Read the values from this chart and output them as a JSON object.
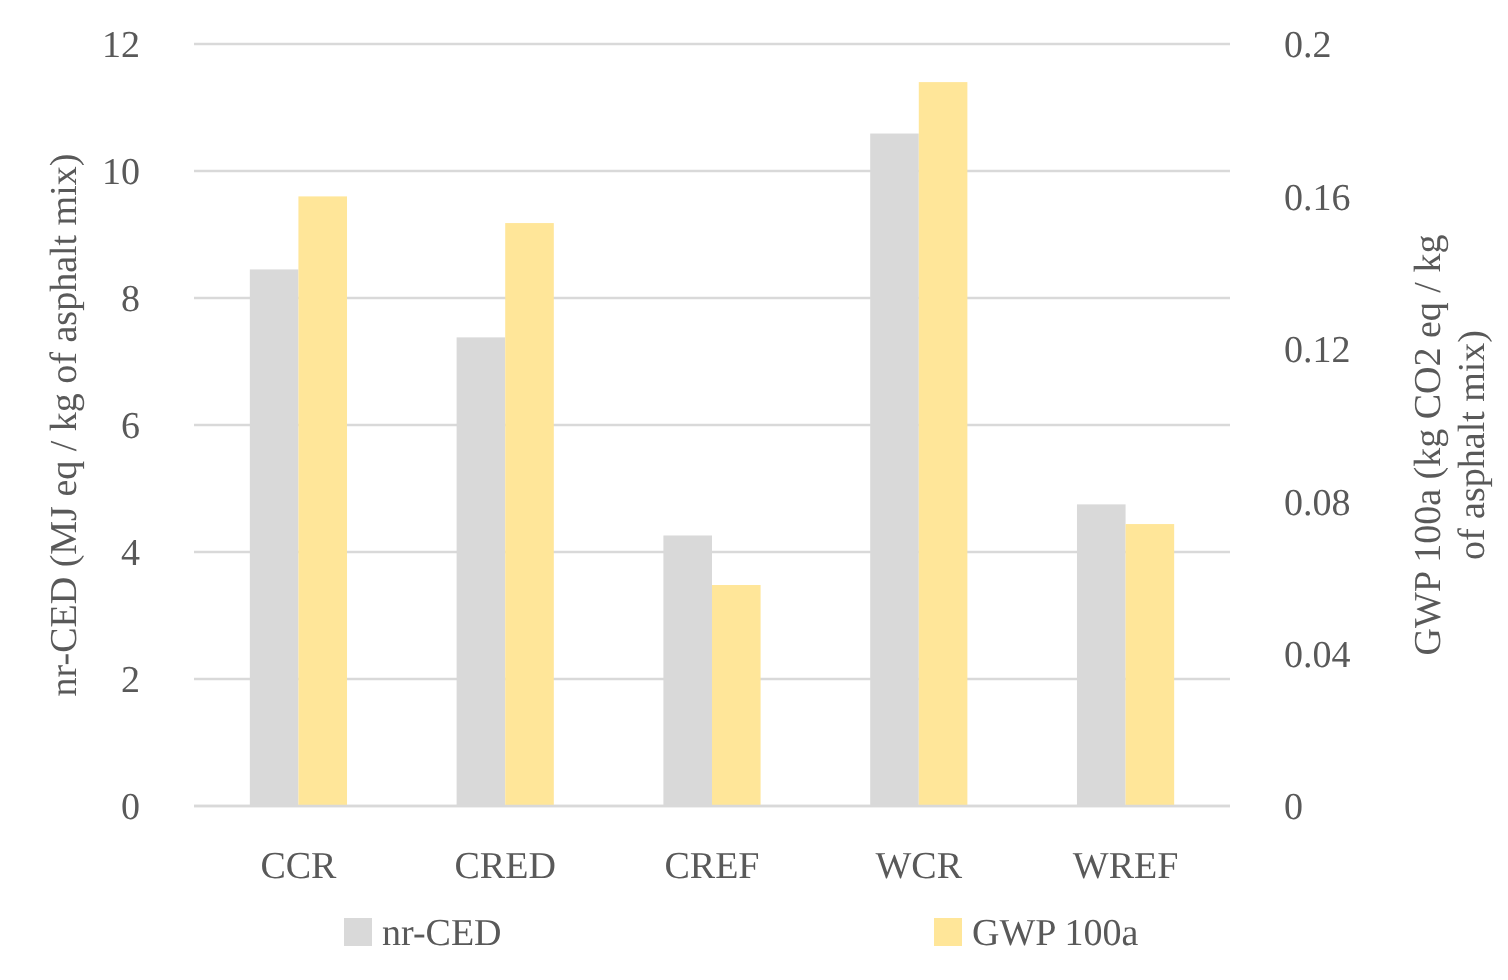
{
  "chart_data": {
    "type": "bar",
    "categories": [
      "CCR",
      "CRED",
      "CREF",
      "WCR",
      "WREF"
    ],
    "series": [
      {
        "name": "nr-CED",
        "color": "#d9d9d9",
        "values": [
          8.45,
          7.38,
          4.26,
          10.59,
          4.75
        ]
      },
      {
        "name": "GWP 100a",
        "color": "#ffe699",
        "axis": "y2",
        "values": [
          0.16,
          0.153,
          0.058,
          0.19,
          0.074
        ]
      }
    ],
    "ylabel": "nr-CED (MJ eq / kg of asphalt mix)",
    "y2label": "GWP 100a (kg CO2 eq / kg of asphalt mix)",
    "ylim": [
      0,
      12
    ],
    "yticks": [
      0,
      2,
      4,
      6,
      8,
      10,
      12
    ],
    "y2lim": [
      0,
      0.2
    ],
    "y2ticks": [
      0,
      0.04,
      0.08,
      0.12,
      0.16,
      0.2
    ],
    "grid": "y",
    "legend": "bottom"
  }
}
